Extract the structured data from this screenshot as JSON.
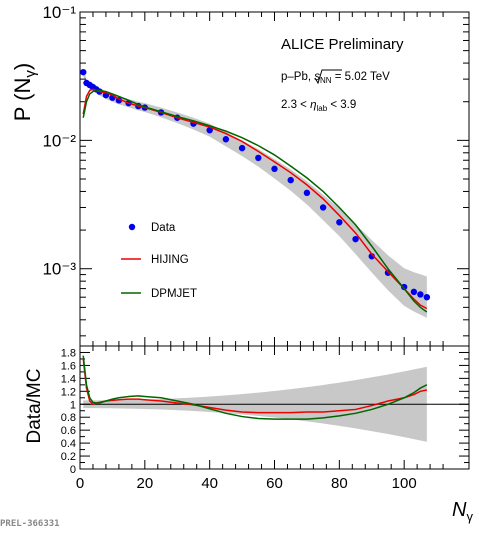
{
  "chart_data": [
    {
      "type": "line",
      "panel": "top",
      "log_y": true,
      "ylabel": "P (N_γ)",
      "ylim": [
        0.00025,
        0.1
      ],
      "xlim": [
        0,
        120
      ],
      "y_tick_labels": [
        "10⁻³",
        "10⁻²",
        "10⁻¹"
      ],
      "annotations": [
        "ALICE Preliminary",
        "p–Pb, √sNN = 5.02 TeV",
        "2.3 < ηlab < 3.9"
      ],
      "legend_position": "lower-left",
      "series": [
        {
          "name": "Data",
          "style": "markers",
          "color": "#0000ee",
          "x": [
            1,
            2,
            3,
            4,
            5,
            6,
            8,
            10,
            12,
            15,
            18,
            20,
            25,
            30,
            35,
            40,
            45,
            50,
            55,
            60,
            65,
            70,
            75,
            80,
            85,
            90,
            95,
            100,
            103,
            105,
            107
          ],
          "y": [
            0.034,
            0.028,
            0.027,
            0.026,
            0.025,
            0.024,
            0.0225,
            0.0215,
            0.0205,
            0.0195,
            0.0185,
            0.018,
            0.0165,
            0.015,
            0.0135,
            0.012,
            0.0102,
            0.0087,
            0.0073,
            0.006,
            0.0049,
            0.0039,
            0.003,
            0.0023,
            0.0017,
            0.00125,
            0.00093,
            0.00072,
            0.00066,
            0.00063,
            0.0006
          ]
        },
        {
          "name": "HIJING",
          "style": "line",
          "color": "#ee0000",
          "x": [
            1,
            2,
            3,
            4,
            5,
            6,
            8,
            10,
            12,
            15,
            18,
            20,
            25,
            30,
            35,
            40,
            45,
            50,
            55,
            60,
            65,
            70,
            75,
            80,
            85,
            90,
            95,
            100,
            103,
            105,
            107
          ],
          "y": [
            0.016,
            0.022,
            0.0245,
            0.025,
            0.0245,
            0.024,
            0.0235,
            0.0225,
            0.021,
            0.0195,
            0.0185,
            0.018,
            0.0165,
            0.015,
            0.0138,
            0.0127,
            0.0113,
            0.0098,
            0.0082,
            0.0068,
            0.0056,
            0.0045,
            0.0035,
            0.0026,
            0.0019,
            0.0013,
            0.00095,
            0.0007,
            0.00058,
            0.00052,
            0.00049
          ]
        },
        {
          "name": "DPMJET",
          "style": "line",
          "color": "#006600",
          "x": [
            1,
            2,
            3,
            4,
            5,
            6,
            8,
            10,
            12,
            15,
            18,
            20,
            25,
            30,
            35,
            40,
            45,
            50,
            55,
            60,
            65,
            70,
            75,
            80,
            85,
            90,
            95,
            100,
            103,
            105,
            107
          ],
          "y": [
            0.015,
            0.02,
            0.023,
            0.024,
            0.0245,
            0.0245,
            0.024,
            0.023,
            0.022,
            0.0205,
            0.019,
            0.0182,
            0.0167,
            0.0153,
            0.0142,
            0.013,
            0.0118,
            0.0105,
            0.0091,
            0.0077,
            0.0063,
            0.0051,
            0.004,
            0.003,
            0.0022,
            0.0015,
            0.001,
            0.0007,
            0.00056,
            0.0005,
            0.00046
          ]
        }
      ]
    },
    {
      "type": "line",
      "panel": "bottom",
      "ylabel": "Data/MC",
      "xlabel": "N_γ",
      "ylim": [
        0,
        1.9
      ],
      "xlim": [
        0,
        120
      ],
      "y_tick_labels": [
        "0",
        "0.2",
        "0.4",
        "0.6",
        "0.8",
        "1",
        "1.2",
        "1.4",
        "1.6",
        "1.8"
      ],
      "x_tick_labels": [
        "0",
        "20",
        "40",
        "60",
        "80",
        "100"
      ],
      "reference_line": 1.0,
      "series": [
        {
          "name": "HIJING",
          "color": "#ee0000",
          "x": [
            1,
            2,
            3,
            4,
            5,
            6,
            8,
            10,
            12,
            15,
            18,
            20,
            25,
            30,
            35,
            40,
            45,
            50,
            55,
            60,
            65,
            70,
            75,
            80,
            85,
            90,
            95,
            100,
            103,
            105,
            107
          ],
          "y": [
            1.7,
            1.25,
            1.05,
            1.0,
            1.02,
            1.03,
            1.05,
            1.06,
            1.07,
            1.08,
            1.08,
            1.07,
            1.05,
            1.02,
            0.99,
            0.95,
            0.91,
            0.88,
            0.87,
            0.87,
            0.87,
            0.88,
            0.88,
            0.9,
            0.92,
            0.98,
            1.05,
            1.1,
            1.15,
            1.2,
            1.22
          ]
        },
        {
          "name": "DPMJET",
          "color": "#006600",
          "x": [
            1,
            2,
            3,
            4,
            5,
            6,
            8,
            10,
            12,
            15,
            18,
            20,
            25,
            30,
            35,
            40,
            45,
            50,
            55,
            60,
            65,
            70,
            75,
            80,
            85,
            90,
            95,
            100,
            103,
            105,
            107
          ],
          "y": [
            1.75,
            1.3,
            1.1,
            1.03,
            1.02,
            1.02,
            1.05,
            1.08,
            1.1,
            1.12,
            1.13,
            1.12,
            1.1,
            1.05,
            1.0,
            0.93,
            0.86,
            0.81,
            0.78,
            0.77,
            0.77,
            0.77,
            0.79,
            0.82,
            0.86,
            0.92,
            1.0,
            1.1,
            1.18,
            1.25,
            1.3
          ]
        }
      ]
    }
  ],
  "text": {
    "ylabel_top": "P (N",
    "ylabel_top_sub": "γ",
    "ylabel_top_close": ")",
    "ylabel_bottom": "Data/MC",
    "xlabel": "N",
    "xlabel_sub": "γ",
    "alice": "ALICE Preliminary",
    "collision_pre": "p–Pb, ",
    "collision_s": "s",
    "collision_sub": "NN",
    "collision_post": " = 5.02 TeV",
    "eta_pre": "2.3 < ",
    "eta_sym": "η",
    "eta_sub": "lab",
    "eta_post": " < 3.9",
    "legend_data": "Data",
    "legend_hijing": "HIJING",
    "legend_dpmjet": "DPMJET",
    "footer": "PREL-366331"
  }
}
